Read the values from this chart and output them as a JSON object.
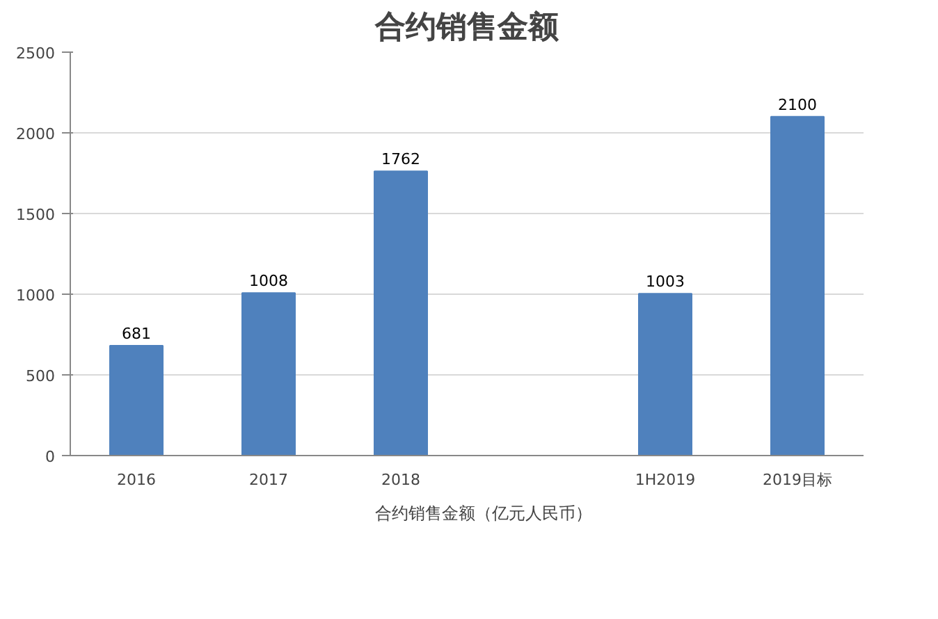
{
  "chart_data": {
    "type": "bar",
    "title": "合约销售金额",
    "categories": [
      "2016",
      "2017",
      "2018",
      null,
      "1H2019",
      "2019目标"
    ],
    "series": [
      {
        "name": "合约销售金额（亿元人民币）",
        "color": "#4f81bd",
        "values": [
          681,
          1008,
          1762,
          null,
          1003,
          2100
        ]
      }
    ],
    "ylim": [
      0,
      2500
    ],
    "yticks": [
      0,
      500,
      1000,
      1500,
      2000,
      2500
    ],
    "grid": "y",
    "legend": "bottom",
    "data_labels": true
  }
}
